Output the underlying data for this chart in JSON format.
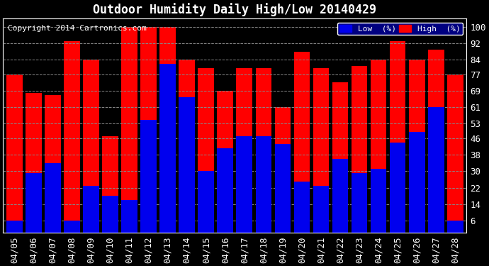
{
  "title": "Outdoor Humidity Daily High/Low 20140429",
  "copyright": "Copyright 2014 Cartronics.com",
  "categories": [
    "04/05",
    "04/06",
    "04/07",
    "04/08",
    "04/09",
    "04/10",
    "04/11",
    "04/12",
    "04/13",
    "04/14",
    "04/15",
    "04/16",
    "04/17",
    "04/18",
    "04/19",
    "04/20",
    "04/21",
    "04/22",
    "04/23",
    "04/24",
    "04/25",
    "04/26",
    "04/27",
    "04/28"
  ],
  "high": [
    77,
    68,
    67,
    93,
    84,
    47,
    100,
    100,
    100,
    84,
    80,
    69,
    80,
    80,
    61,
    88,
    80,
    73,
    81,
    84,
    93,
    84,
    89,
    77
  ],
  "low": [
    6,
    29,
    34,
    6,
    23,
    18,
    16,
    55,
    82,
    66,
    30,
    41,
    47,
    47,
    43,
    25,
    23,
    36,
    29,
    31,
    44,
    49,
    61,
    6
  ],
  "high_color": "#ff0000",
  "low_color": "#0000ee",
  "bg_color": "#000000",
  "plot_bg_color": "#000000",
  "grid_color": "#888888",
  "ylim_min": 0,
  "ylim_max": 104,
  "yticks": [
    6,
    14,
    22,
    30,
    38,
    46,
    53,
    61,
    69,
    77,
    84,
    92,
    100
  ],
  "bar_width": 0.42,
  "title_fontsize": 12,
  "tick_fontsize": 9,
  "copyright_fontsize": 8,
  "legend_low_label": "Low  (%)",
  "legend_high_label": "High  (%)"
}
